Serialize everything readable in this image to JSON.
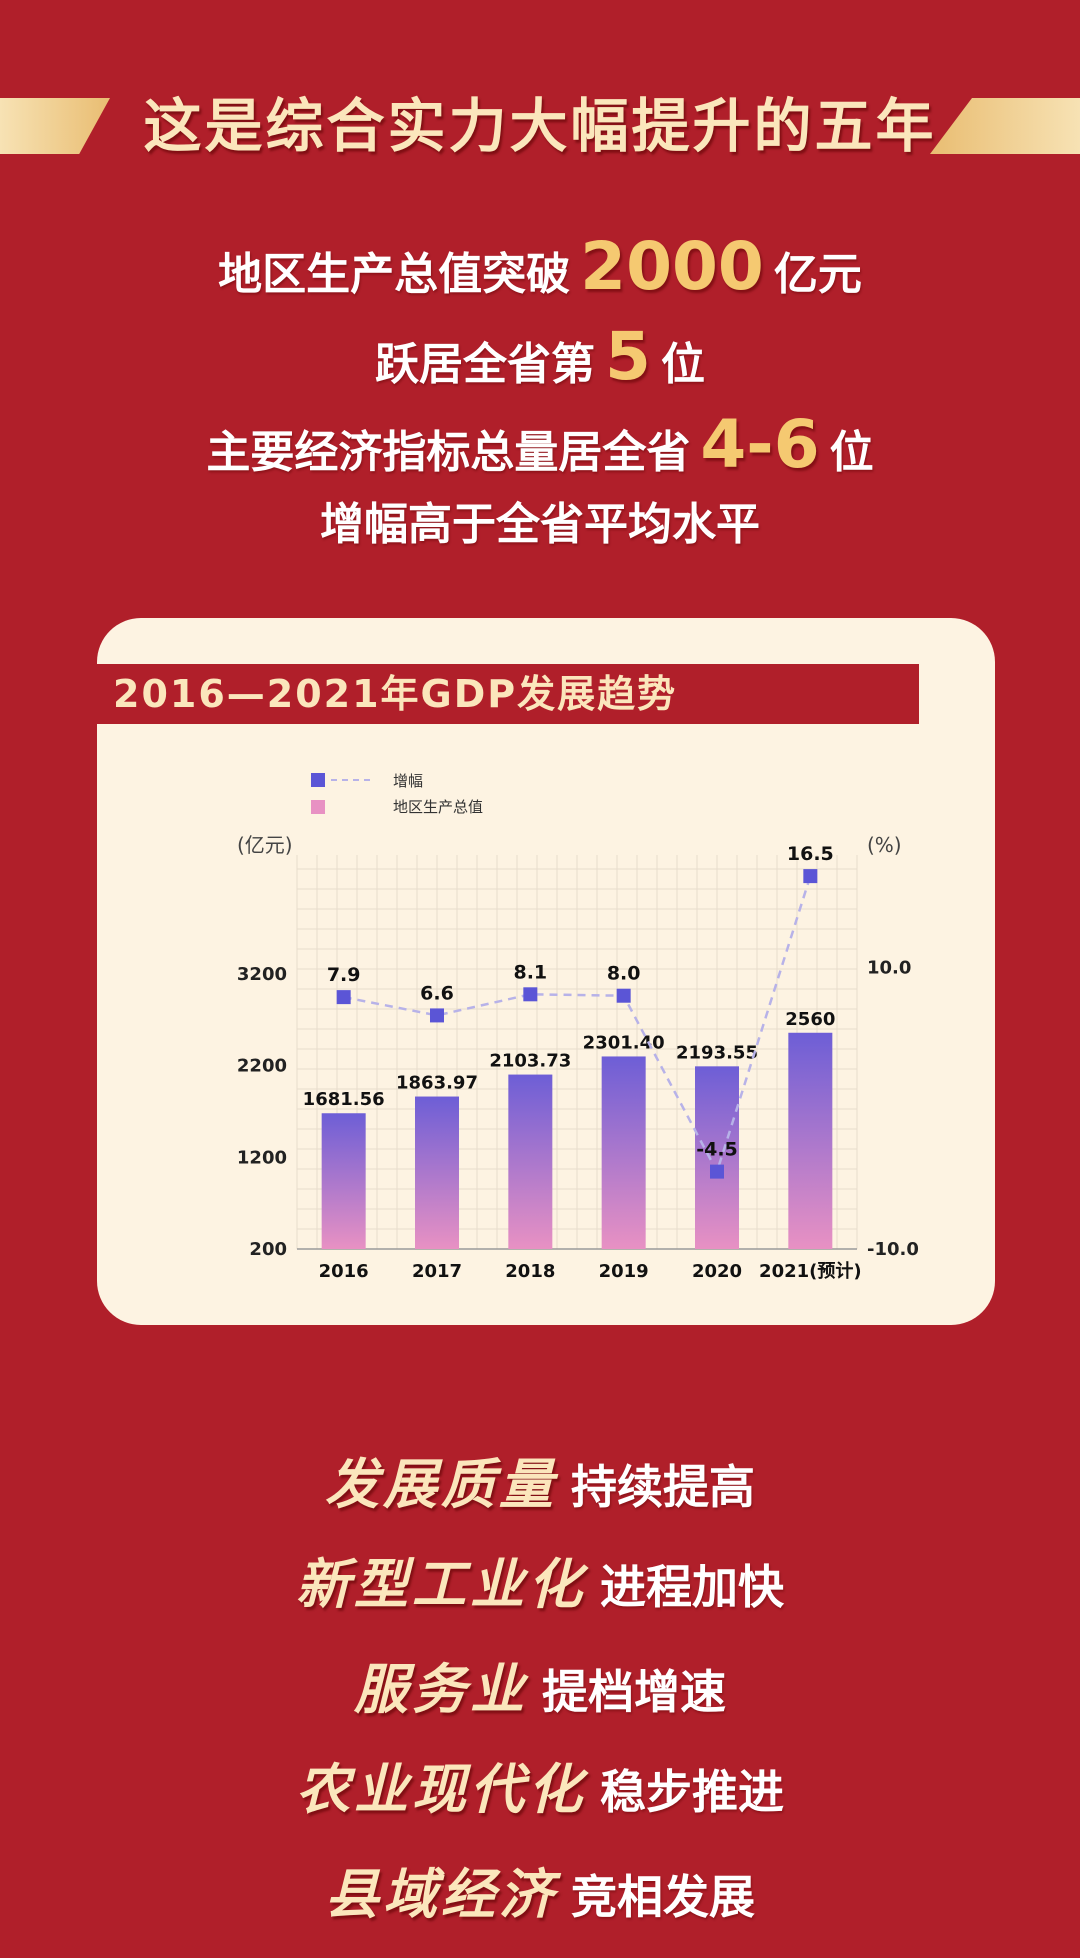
{
  "title": "这是综合实力大幅提升的五年",
  "headlines": [
    {
      "pre": "地区生产总值突破",
      "num": "2000",
      "post": "亿元"
    },
    {
      "pre": "跃居全省第",
      "num": "5",
      "post": "位"
    },
    {
      "pre": "主要经济指标总量居全省",
      "num": "4-6",
      "post": "位"
    },
    {
      "text": "增幅高于全省平均水平"
    }
  ],
  "chart_card": {
    "title": "2016—2021年GDP发展趋势"
  },
  "chart_data": {
    "type": "bar",
    "categories": [
      "2016",
      "2017",
      "2018",
      "2019",
      "2020",
      "2021(预计)"
    ],
    "bars": {
      "name": "地区生产总值",
      "values": [
        1681.56,
        1863.97,
        2103.73,
        2301.4,
        2193.55,
        2560
      ],
      "labels": [
        "1681.56",
        "1863.97",
        "2103.73",
        "2301.40",
        "2193.55",
        "2560"
      ]
    },
    "line": {
      "name": "增幅",
      "values": [
        7.9,
        6.6,
        8.1,
        8.0,
        -4.5,
        16.5
      ],
      "labels": [
        "7.9",
        "6.6",
        "8.1",
        "8.0",
        "-4.5",
        "16.5"
      ]
    },
    "left_axis": {
      "unit": "(亿元)",
      "ticks": [
        200,
        1200,
        2200,
        3200
      ],
      "ylim": [
        200,
        4500
      ]
    },
    "right_axis": {
      "unit": "(%)",
      "ticks": [
        "10.0",
        "-10.0"
      ],
      "ylim": [
        -10,
        18
      ]
    },
    "legend": [
      "增幅",
      "地区生产总值"
    ],
    "legend_position": "top-left",
    "grid": true,
    "colors": {
      "bar_top": "#6d5ed6",
      "bar_bottom": "#e891c3",
      "marker": "#5b55d6",
      "line": "#b7b2e8"
    }
  },
  "slogans": [
    {
      "kw": "发展质量",
      "text": "持续提高"
    },
    {
      "kw": "新型工业化",
      "text": "进程加快"
    },
    {
      "kw": "服务业",
      "text": "提档增速"
    },
    {
      "kw": "农业现代化",
      "text": "稳步推进"
    },
    {
      "kw": "县域经济",
      "text": "竞相发展"
    }
  ],
  "colors": {
    "background": "#b01f2a",
    "gold": "#f5c971",
    "cream": "#fdf3e2"
  }
}
